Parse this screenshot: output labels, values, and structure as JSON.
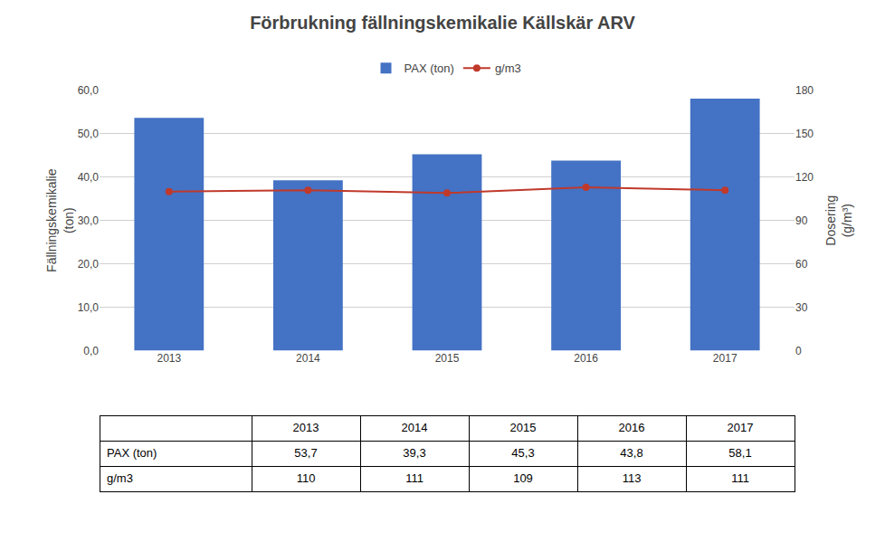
{
  "chart_data": {
    "type": "bar",
    "title": "Förbrukning fällningskemikalie Källskär ARV",
    "categories": [
      "2013",
      "2014",
      "2015",
      "2016",
      "2017"
    ],
    "series": [
      {
        "name": "PAX (ton)",
        "type": "bar",
        "color": "#4472C4",
        "values": [
          53.7,
          39.3,
          45.3,
          43.8,
          58.1
        ]
      },
      {
        "name": "g/m3",
        "type": "line",
        "color": "#C0392B",
        "marker": "circle",
        "axis": "y2",
        "values": [
          110,
          111,
          109,
          113,
          111
        ]
      }
    ],
    "ylabel": "Fällningskemikalie\n(ton)",
    "y2label": "Dosering\n(g/m³)",
    "ylim": [
      0,
      60
    ],
    "yticks": [
      {
        "value": 0,
        "label": "0,0"
      },
      {
        "value": 10,
        "label": "10,0"
      },
      {
        "value": 20,
        "label": "20,0"
      },
      {
        "value": 30,
        "label": "30,0"
      },
      {
        "value": 40,
        "label": "40,0"
      },
      {
        "value": 50,
        "label": "50,0"
      },
      {
        "value": 60,
        "label": "60,0"
      }
    ],
    "y2lim": [
      0,
      180
    ],
    "y2ticks": [
      0,
      30,
      60,
      90,
      120,
      150,
      180
    ],
    "grid": true,
    "legend": "top",
    "table": {
      "rows": [
        {
          "label": "PAX (ton)",
          "values": [
            "53,7",
            "39,3",
            "45,3",
            "43,8",
            "58,1"
          ]
        },
        {
          "label": "g/m3",
          "values": [
            "110",
            "111",
            "109",
            "113",
            "111"
          ]
        }
      ]
    }
  }
}
